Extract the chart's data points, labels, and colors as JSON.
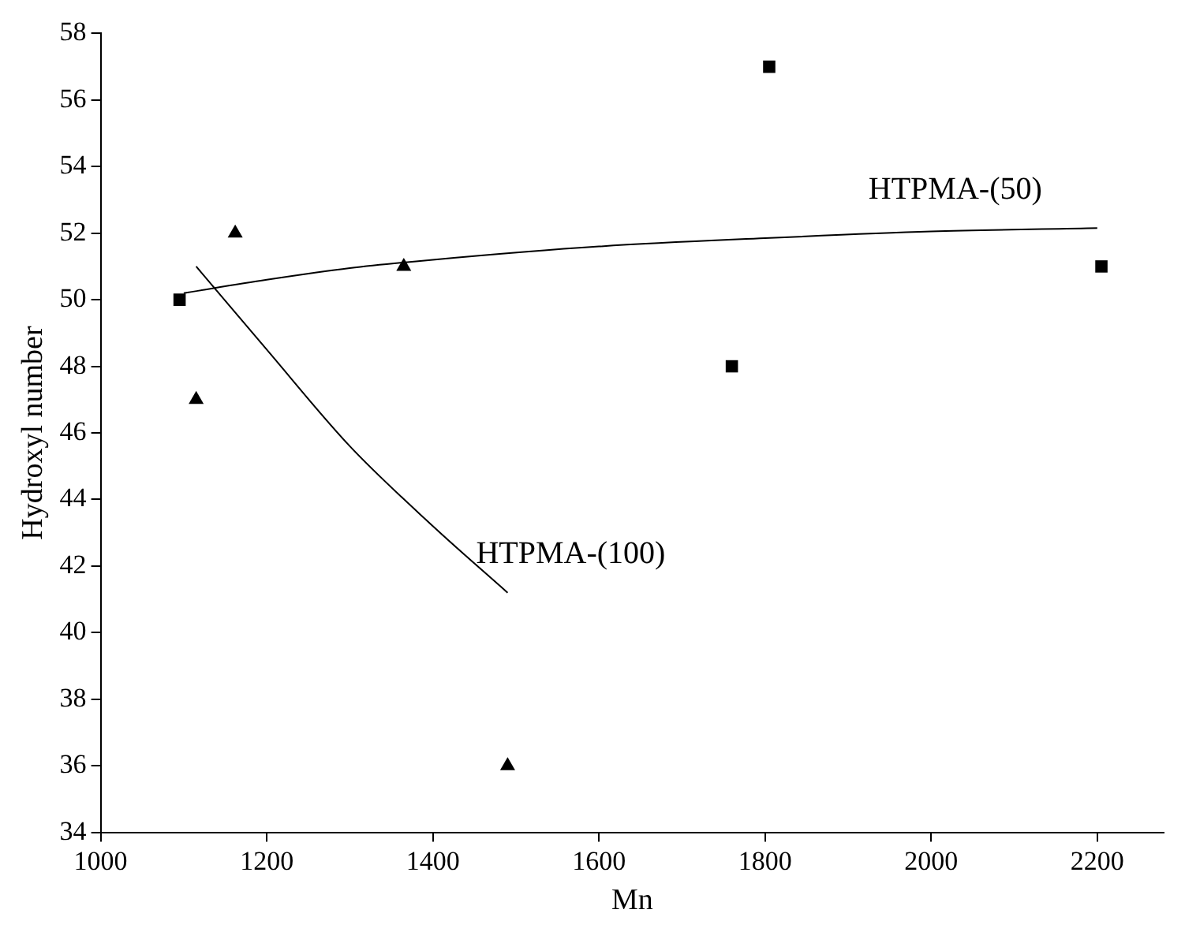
{
  "chart_data": {
    "type": "scatter",
    "xlabel": "Mn",
    "ylabel": "Hydroxyl number",
    "xlim": [
      1000,
      2280
    ],
    "xticks": [
      1000,
      1200,
      1400,
      1600,
      1800,
      2000,
      2200
    ],
    "ylim": [
      34,
      58
    ],
    "yticks": [
      34,
      36,
      38,
      40,
      42,
      44,
      46,
      48,
      50,
      52,
      54,
      56,
      58
    ],
    "grid": false,
    "legend": false,
    "series": [
      {
        "marker": "square",
        "color": "#000000",
        "x": [
          1095,
          1760,
          1805,
          2205
        ],
        "values": [
          50,
          48,
          57,
          51
        ]
      },
      {
        "marker": "triangle",
        "color": "#000000",
        "x": [
          1115,
          1162,
          1365,
          1490
        ],
        "values": [
          47,
          52,
          51,
          36
        ]
      },
      {
        "type": "line",
        "name": "HTPMA-(50)",
        "marker": "none",
        "color": "#000000",
        "x": [
          1100,
          1200,
          1300,
          1400,
          1600,
          1800,
          2000,
          2200
        ],
        "values": [
          50.2,
          50.6,
          50.95,
          51.2,
          51.6,
          51.85,
          52.05,
          52.15
        ]
      },
      {
        "type": "line",
        "name": "HTPMA-(100)",
        "marker": "none",
        "color": "#000000",
        "x": [
          1115,
          1200,
          1300,
          1400,
          1490
        ],
        "values": [
          51,
          48.5,
          45.6,
          43.2,
          41.2
        ]
      }
    ]
  }
}
